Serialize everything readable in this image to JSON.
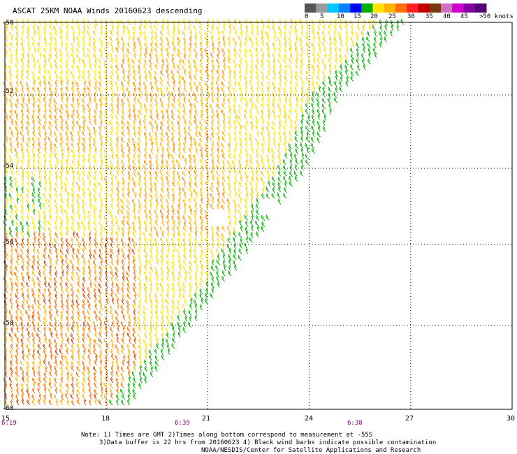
{
  "title": "ASCAT 25KM NOAA Winds 20160623 descending",
  "colorbar": {
    "colors": [
      "#555555",
      "#9a9a9a",
      "#00c8ff",
      "#0080ff",
      "#0000ff",
      "#00b000",
      "#ffe400",
      "#ffb400",
      "#ff7000",
      "#ff2020",
      "#c00000",
      "#7a3a10",
      "#d070c0",
      "#d000d0",
      "#8000a0",
      "#500070"
    ],
    "labels": [
      "0",
      "5",
      "10",
      "15",
      "20",
      "25",
      "30",
      "35",
      "40",
      "45",
      ">50 knots"
    ]
  },
  "axes": {
    "x_ticks": [
      "15",
      "18",
      "21",
      "24",
      "27",
      "30"
    ],
    "y_ticks": [
      "-50",
      "-52",
      "-54",
      "-56",
      "-58",
      "-60"
    ]
  },
  "times": [
    "6:19",
    "6:39",
    "6:38"
  ],
  "notes": [
    "Note: 1) Times are GMT 2)Times along bottom correspond to measurement at -55S",
    "3)Data buffer is 22 hrs from 20160623 4) Black wind barbs indicate possible contamination",
    "NOAA/NESDIS/Center for Satellite Applications and Research"
  ],
  "swath": {
    "lon_range": [
      15,
      27.5
    ],
    "lat_range": [
      -60,
      -50
    ],
    "dominant_colors": [
      "#ffe400",
      "#ffb400",
      "#ff7000",
      "#00b000"
    ]
  }
}
